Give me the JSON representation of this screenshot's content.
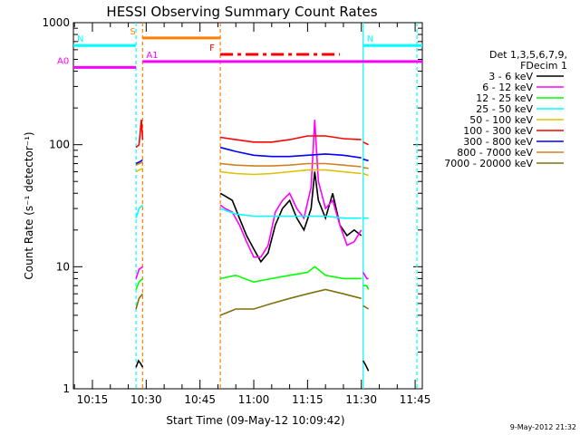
{
  "chart_data": {
    "type": "line",
    "title": "HESSI Observing Summary Count Rates",
    "xlabel": "Start Time (09-May-12 10:09:42)",
    "ylabel": "Count Rate (s⁻¹ detector⁻¹)",
    "y_scale": "log",
    "ylim": [
      1,
      1000
    ],
    "xlim": [
      "10:09:42",
      "11:47:00"
    ],
    "x_ticks": [
      "10:15",
      "10:30",
      "10:45",
      "11:00",
      "11:15",
      "11:30",
      "11:45"
    ],
    "y_ticks": [
      "1",
      "10",
      "100",
      "1000"
    ],
    "legend_title": [
      "Det 1,3,5,6,7,9,",
      "FDecim 1"
    ],
    "legend_position": "right",
    "series": [
      {
        "name": "3 - 6 keV",
        "color": "#000000",
        "segments": [
          {
            "times": [
              "10:27:10",
              "10:27:50",
              "10:28:30",
              "10:29:00"
            ],
            "values": [
              1.5,
              1.7,
              1.6,
              1.5
            ]
          },
          {
            "times": [
              "10:50:40",
              "10:52:00",
              "10:54:00",
              "10:56:00",
              "10:58:00",
              "11:00:00",
              "11:02:00",
              "11:04:00",
              "11:06:00",
              "11:08:00",
              "11:10:00",
              "11:12:00",
              "11:14:00",
              "11:16:00",
              "11:17:00",
              "11:18:00",
              "11:20:00",
              "11:22:00",
              "11:24:00",
              "11:26:00",
              "11:28:00",
              "11:30:00"
            ],
            "values": [
              40,
              38,
              35,
              25,
              18,
              14,
              11,
              13,
              22,
              30,
              35,
              25,
              20,
              30,
              60,
              35,
              25,
              40,
              22,
              18,
              20,
              18
            ]
          },
          {
            "times": [
              "11:30:30",
              "11:31:00",
              "11:31:30",
              "11:32:00"
            ],
            "values": [
              1.7,
              1.6,
              1.5,
              1.4
            ]
          }
        ]
      },
      {
        "name": "6 - 12 keV",
        "color": "#ff00ff",
        "segments": [
          {
            "times": [
              "10:27:10",
              "10:28:00",
              "10:29:00"
            ],
            "values": [
              8,
              9.5,
              10
            ]
          },
          {
            "times": [
              "10:50:40",
              "10:52:00",
              "10:54:00",
              "10:56:00",
              "10:58:00",
              "11:00:00",
              "11:02:00",
              "11:04:00",
              "11:06:00",
              "11:08:00",
              "11:10:00",
              "11:12:00",
              "11:14:00",
              "11:16:00",
              "11:17:00",
              "11:18:00",
              "11:20:00",
              "11:22:00",
              "11:24:00",
              "11:26:00",
              "11:28:00",
              "11:30:00"
            ],
            "values": [
              32,
              30,
              28,
              22,
              16,
              12,
              12,
              15,
              28,
              35,
              40,
              30,
              25,
              45,
              160,
              50,
              30,
              35,
              22,
              15,
              16,
              20
            ]
          },
          {
            "times": [
              "11:30:30",
              "11:31:30",
              "11:32:00"
            ],
            "values": [
              9,
              8,
              8
            ]
          }
        ]
      },
      {
        "name": "12 - 25 keV",
        "color": "#00ff00",
        "segments": [
          {
            "times": [
              "10:27:10",
              "10:28:00",
              "10:29:00"
            ],
            "values": [
              6.5,
              7.5,
              8
            ]
          },
          {
            "times": [
              "10:50:40",
              "10:55:00",
              "11:00:00",
              "11:05:00",
              "11:10:00",
              "11:15:00",
              "11:17:00",
              "11:20:00",
              "11:25:00",
              "11:30:00"
            ],
            "values": [
              8,
              8.5,
              7.5,
              8,
              8.5,
              9,
              10,
              8.5,
              8,
              8
            ]
          },
          {
            "times": [
              "11:30:30",
              "11:31:30",
              "11:32:00"
            ],
            "values": [
              7,
              7,
              6.5
            ]
          }
        ]
      },
      {
        "name": "25 - 50 keV",
        "color": "#00ffff",
        "segments": [
          {
            "times": [
              "10:27:10",
              "10:28:00",
              "10:29:00"
            ],
            "values": [
              25,
              30,
              32
            ]
          },
          {
            "times": [
              "10:50:40",
              "10:55:00",
              "11:00:00",
              "11:05:00",
              "11:10:00",
              "11:15:00",
              "11:20:00",
              "11:25:00",
              "11:30:00"
            ],
            "values": [
              30,
              27,
              26,
              26,
              26,
              26,
              26,
              25,
              25
            ]
          },
          {
            "times": [
              "11:30:30",
              "11:32:00"
            ],
            "values": [
              25,
              25
            ]
          }
        ]
      },
      {
        "name": "50 - 100 keV",
        "color": "#e0c000",
        "segments": [
          {
            "times": [
              "10:27:10",
              "10:28:00",
              "10:29:00"
            ],
            "values": [
              60,
              62,
              64
            ]
          },
          {
            "times": [
              "10:50:40",
              "10:55:00",
              "11:00:00",
              "11:05:00",
              "11:10:00",
              "11:15:00",
              "11:20:00",
              "11:25:00",
              "11:30:00"
            ],
            "values": [
              60,
              58,
              57,
              58,
              60,
              62,
              62,
              60,
              58
            ]
          },
          {
            "times": [
              "11:30:30",
              "11:32:00"
            ],
            "values": [
              58,
              56
            ]
          }
        ]
      },
      {
        "name": "100 - 300 keV",
        "color": "#ff0000",
        "segments": [
          {
            "times": [
              "10:27:10",
              "10:28:00",
              "10:28:40",
              "10:29:00"
            ],
            "values": [
              95,
              100,
              160,
              110
            ]
          },
          {
            "times": [
              "10:50:40",
              "10:55:00",
              "11:00:00",
              "11:05:00",
              "11:10:00",
              "11:15:00",
              "11:20:00",
              "11:25:00",
              "11:30:00"
            ],
            "values": [
              115,
              110,
              105,
              105,
              110,
              118,
              118,
              112,
              110
            ]
          },
          {
            "times": [
              "11:30:30",
              "11:32:00"
            ],
            "values": [
              105,
              100
            ]
          }
        ]
      },
      {
        "name": "300 - 800 keV",
        "color": "#0000ff",
        "segments": [
          {
            "times": [
              "10:27:10",
              "10:28:00",
              "10:29:00"
            ],
            "values": [
              70,
              72,
              75
            ]
          },
          {
            "times": [
              "10:50:40",
              "10:55:00",
              "11:00:00",
              "11:05:00",
              "11:10:00",
              "11:15:00",
              "11:20:00",
              "11:25:00",
              "11:30:00"
            ],
            "values": [
              95,
              88,
              82,
              80,
              80,
              82,
              84,
              82,
              78
            ]
          },
          {
            "times": [
              "11:30:30",
              "11:32:00"
            ],
            "values": [
              76,
              74
            ]
          }
        ]
      },
      {
        "name": "800 - 7000 keV",
        "color": "#d08020",
        "segments": [
          {
            "times": [
              "10:27:10",
              "10:28:00",
              "10:29:00"
            ],
            "values": [
              68,
              70,
              72
            ]
          },
          {
            "times": [
              "10:50:40",
              "10:55:00",
              "11:00:00",
              "11:05:00",
              "11:10:00",
              "11:15:00",
              "11:20:00",
              "11:25:00",
              "11:30:00"
            ],
            "values": [
              70,
              68,
              67,
              67,
              68,
              70,
              70,
              68,
              66
            ]
          },
          {
            "times": [
              "11:30:30",
              "11:32:00"
            ],
            "values": [
              65,
              64
            ]
          }
        ]
      },
      {
        "name": "7000 - 20000 keV",
        "color": "#807010",
        "segments": [
          {
            "times": [
              "10:27:10",
              "10:28:00",
              "10:29:00"
            ],
            "values": [
              4.5,
              5.5,
              6
            ]
          },
          {
            "times": [
              "10:50:40",
              "10:55:00",
              "11:00:00",
              "11:05:00",
              "11:10:00",
              "11:15:00",
              "11:20:00",
              "11:25:00",
              "11:30:00"
            ],
            "values": [
              4,
              4.5,
              4.5,
              5,
              5.5,
              6,
              6.5,
              6,
              5.5
            ]
          },
          {
            "times": [
              "11:30:30",
              "11:32:00"
            ],
            "values": [
              4.8,
              4.5
            ]
          }
        ]
      }
    ],
    "state_bars": [
      {
        "label": "S",
        "color": "#ff8000",
        "start": "10:29:00",
        "end": "10:50:40",
        "value": 750
      },
      {
        "label": "N",
        "color": "#00ffff",
        "start": "10:09:42",
        "end": "10:27:10",
        "value": 650
      },
      {
        "label": "N",
        "color": "#00ffff",
        "start": "11:30:30",
        "end": "11:47:00",
        "value": 650
      },
      {
        "label": "A0",
        "color": "#ff00ff",
        "start": "10:09:42",
        "end": "10:27:10",
        "value": 430
      },
      {
        "label": "A1",
        "color": "#ff00ff",
        "start": "10:29:00",
        "end": "11:47:00",
        "value": 480
      },
      {
        "label": "F",
        "color": "#ff0000",
        "start": "10:50:40",
        "end": "11:24:00",
        "value": 550,
        "dashed": true
      }
    ],
    "vertical_markers": [
      {
        "time": "10:27:10",
        "color": "#00ffff",
        "dashed": true
      },
      {
        "time": "10:29:00",
        "color": "#ff8000",
        "dashed": true
      },
      {
        "time": "10:50:40",
        "color": "#ff8000",
        "dashed": true
      },
      {
        "time": "11:30:30",
        "color": "#00ffff",
        "dashed": false
      },
      {
        "time": "11:45:30",
        "color": "#00ffff",
        "dashed": true
      }
    ]
  },
  "footer": {
    "timestamp": "9-May-2012 21:32"
  }
}
